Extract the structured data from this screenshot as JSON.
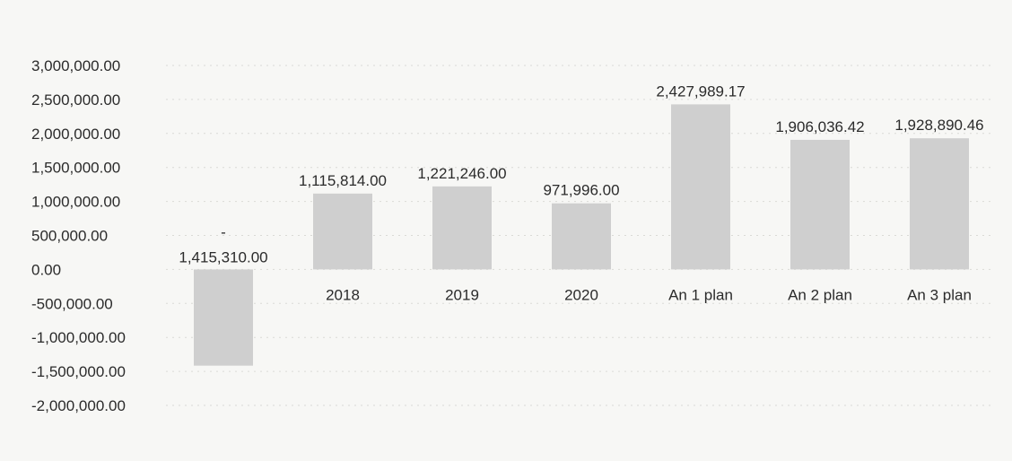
{
  "chart_data": {
    "type": "bar",
    "title": "",
    "xlabel": "",
    "ylabel": "",
    "categories": [
      "",
      "2018",
      "2019",
      "2020",
      "An 1 plan",
      "An 2 plan",
      "An 3 plan"
    ],
    "values": [
      -1415310.0,
      1115814.0,
      1221246.0,
      971996.0,
      2427989.17,
      1906036.42,
      1928890.46
    ],
    "data_labels": [
      "-\n1,415,310.00",
      "1,115,814.00",
      "1,221,246.00",
      "971,996.00",
      "2,427,989.17",
      "1,906,036.42",
      "1,928,890.46"
    ],
    "ylim": [
      -2000000,
      3000000
    ],
    "y_ticks": [
      "3,000,000.00",
      "2,500,000.00",
      "2,000,000.00",
      "1,500,000.00",
      "1,000,000.00",
      "500,000.00",
      "0.00",
      "-500,000.00",
      "-1,000,000.00",
      "-1,500,000.00",
      "-2,000,000.00"
    ],
    "y_tick_values": [
      3000000,
      2500000,
      2000000,
      1500000,
      1000000,
      500000,
      0,
      -500000,
      -1000000,
      -1500000,
      -2000000
    ],
    "grid": true,
    "legend": "none",
    "colors": {
      "bar": "#cfcfcf",
      "text": "#2b2b2b"
    }
  }
}
